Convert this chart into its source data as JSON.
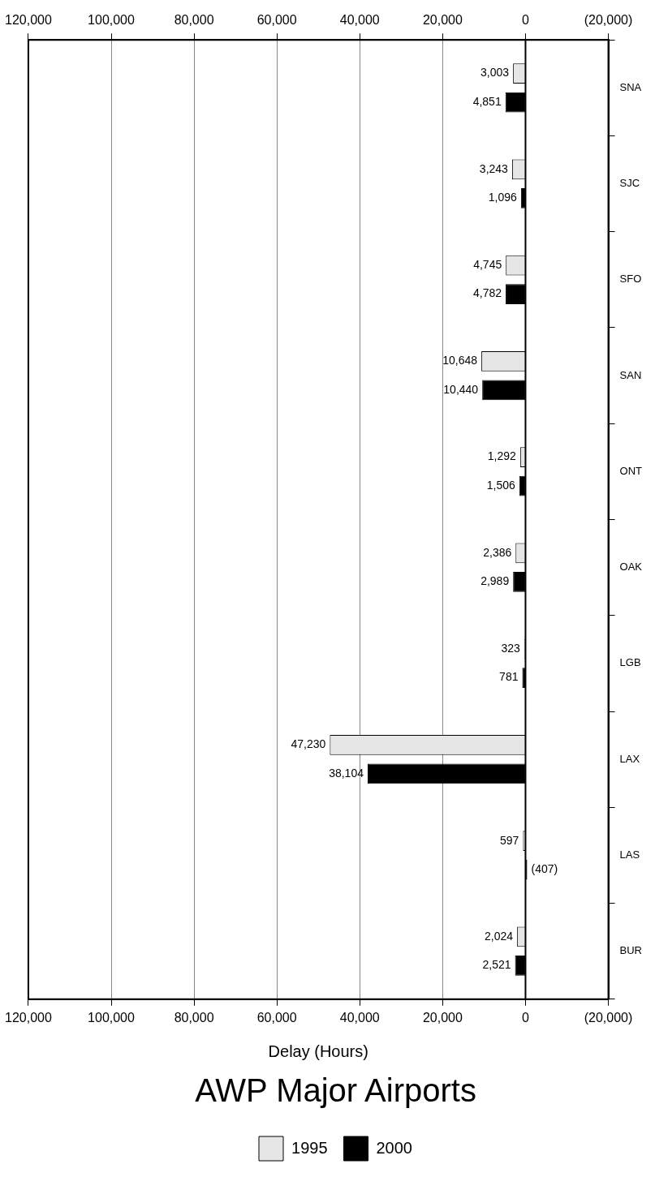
{
  "chart_data": {
    "type": "bar",
    "orientation": "horizontal",
    "title": "AWP Major Airports",
    "xlabel": "Delay (Hours)",
    "categories": [
      "SNA",
      "SJC",
      "SFO",
      "SAN",
      "ONT",
      "OAK",
      "LGB",
      "LAX",
      "LAS",
      "BUR"
    ],
    "series": [
      {
        "name": "1995",
        "color": "#e6e6e6",
        "values": [
          3003,
          3243,
          4745,
          10648,
          1292,
          2386,
          323,
          47230,
          597,
          2024
        ],
        "value_labels": [
          "3,003",
          "3,243",
          "4,745",
          "10,648",
          "1,292",
          "2,386",
          "323",
          "47,230",
          "597",
          "2,024"
        ]
      },
      {
        "name": "2000",
        "color": "#000000",
        "values": [
          4851,
          1096,
          4782,
          10440,
          1506,
          2989,
          781,
          38104,
          -407,
          2521
        ],
        "value_labels": [
          "4,851",
          "1,096",
          "4,782",
          "10,440",
          "1,506",
          "2,989",
          "781",
          "38,104",
          "(407)",
          "2,521"
        ]
      }
    ],
    "xlim": [
      120000,
      -20000
    ],
    "xticks": [
      {
        "value": 120000,
        "label": "120,000"
      },
      {
        "value": 100000,
        "label": "100,000"
      },
      {
        "value": 80000,
        "label": "80,000"
      },
      {
        "value": 60000,
        "label": "60,000"
      },
      {
        "value": 40000,
        "label": "40,000"
      },
      {
        "value": 20000,
        "label": "20,000"
      },
      0,
      {
        "value": -20000,
        "label": "(20,000)"
      }
    ],
    "x2lim": [
      120000,
      -20000
    ],
    "x2ticks": [
      {
        "value": 120000,
        "label": "120,000"
      },
      {
        "value": 100000,
        "label": "100,000"
      },
      {
        "value": 80000,
        "label": "80,000"
      },
      {
        "value": 60000,
        "label": "60,000"
      },
      {
        "value": 40000,
        "label": "40,000"
      },
      {
        "value": 20000,
        "label": "20,000"
      },
      0,
      {
        "value": -20000,
        "label": "(20,000)"
      }
    ],
    "ref_lines": [
      {
        "axis": "x",
        "value": 0,
        "color": "#000000"
      }
    ],
    "grid": "x",
    "legend": "bottom"
  }
}
